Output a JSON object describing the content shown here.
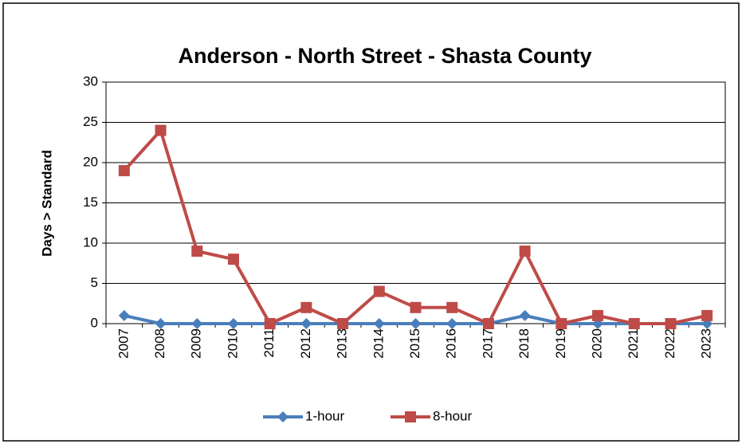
{
  "chart_data": {
    "type": "line",
    "title": "Anderson - North Street - Shasta County",
    "y_label": "Days > Standard",
    "categories": [
      "2007",
      "2008",
      "2009",
      "2010",
      "2011",
      "2012",
      "2013",
      "2014",
      "2015",
      "2016",
      "2017",
      "2018",
      "2019",
      "2020",
      "2021",
      "2022",
      "2023"
    ],
    "series": [
      {
        "name": "1-hour",
        "color": "#4a7ebb",
        "marker": "diamond",
        "values": [
          1,
          0,
          0,
          0,
          0,
          0,
          0,
          0,
          0,
          0,
          0,
          1,
          0,
          0,
          0,
          0,
          0
        ]
      },
      {
        "name": "8-hour",
        "color": "#be4b48",
        "marker": "square",
        "values": [
          19,
          24,
          9,
          8,
          0,
          2,
          0,
          4,
          2,
          2,
          0,
          9,
          0,
          1,
          0,
          0,
          1
        ]
      }
    ],
    "ylim": [
      0,
      30
    ],
    "yticks": [
      0,
      5,
      10,
      15,
      20,
      25,
      30
    ],
    "grid": true,
    "legend": "bottom"
  }
}
